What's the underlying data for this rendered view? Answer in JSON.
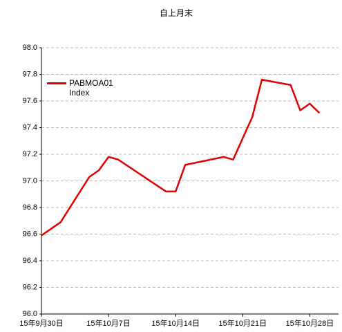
{
  "chart_data": {
    "type": "line",
    "title": "自上月末",
    "x": [
      "2015-09-30",
      "2015-10-02",
      "2015-10-05",
      "2015-10-06",
      "2015-10-07",
      "2015-10-08",
      "2015-10-13",
      "2015-10-14",
      "2015-10-15",
      "2015-10-19",
      "2015-10-20",
      "2015-10-22",
      "2015-10-23",
      "2015-10-26",
      "2015-10-27",
      "2015-10-28",
      "2015-10-29"
    ],
    "series": [
      {
        "name": "PABMOA01 Index",
        "color": "#e00000",
        "values": [
          96.59,
          96.69,
          97.03,
          97.08,
          97.18,
          97.16,
          96.92,
          96.92,
          97.12,
          97.18,
          97.16,
          97.48,
          97.76,
          97.72,
          97.53,
          97.58,
          97.51
        ]
      }
    ],
    "xlim": [
      "2015-09-30",
      "2015-10-31"
    ],
    "xticks": [
      {
        "value": "2015-09-30",
        "label": "15年9月30日"
      },
      {
        "value": "2015-10-07",
        "label": "15年10月7日"
      },
      {
        "value": "2015-10-14",
        "label": "15年10月14日"
      },
      {
        "value": "2015-10-21",
        "label": "15年10月21日"
      },
      {
        "value": "2015-10-28",
        "label": "15年10月28日"
      }
    ],
    "ylim": [
      96,
      98
    ],
    "yticks": [
      {
        "value": 96,
        "label": "96.0"
      },
      {
        "value": 96.2,
        "label": "96.2"
      },
      {
        "value": 96.4,
        "label": "96.4"
      },
      {
        "value": 96.6,
        "label": "96.6"
      },
      {
        "value": 96.8,
        "label": "96.8"
      },
      {
        "value": 97,
        "label": "97.0"
      },
      {
        "value": 97.2,
        "label": "97.2"
      },
      {
        "value": 97.4,
        "label": "97.4"
      },
      {
        "value": 97.6,
        "label": "97.6"
      },
      {
        "value": 97.8,
        "label": "97.8"
      },
      {
        "value": 98,
        "label": "98.0"
      }
    ],
    "grid": true,
    "legend": "upper left"
  }
}
